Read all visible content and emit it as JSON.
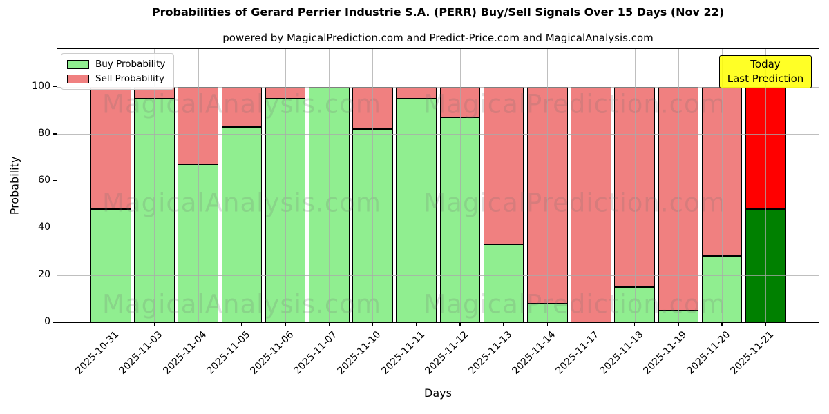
{
  "title": "Probabilities of Gerard Perrier Industrie S.A. (PERR) Buy/Sell Signals Over 15 Days (Nov 22)",
  "subtitle": "powered by MagicalPrediction.com and Predict-Price.com and MagicalAnalysis.com",
  "legend": {
    "buy_label": "Buy Probability",
    "sell_label": "Sell Probability"
  },
  "annotation": {
    "line1": "Today",
    "line2": "Last Prediction"
  },
  "axes": {
    "xlabel": "Days",
    "ylabel": "Probability",
    "yticks": [
      0,
      20,
      40,
      60,
      80,
      100
    ],
    "ylim": [
      0,
      116
    ],
    "dashed_line_y": 110,
    "grid": true
  },
  "colors": {
    "buy": "#90ee90",
    "sell": "#f08080",
    "today_buy": "#008000",
    "today_sell": "#ff0000",
    "annotation_bg": "#ffff00",
    "bar_edge": "#000000",
    "grid": "#aaaaaa",
    "watermark": "#6e6e6e"
  },
  "watermarks": {
    "left_text": "MagicalAnalysis.com",
    "right_text": "MagicalPrediction.com"
  },
  "chart_data": {
    "type": "bar",
    "stacked": true,
    "title": "Probabilities of Gerard Perrier Industrie S.A. (PERR) Buy/Sell Signals Over 15 Days (Nov 22)",
    "xlabel": "Days",
    "ylabel": "Probability",
    "ylim": [
      0,
      116
    ],
    "legend_position": "upper left",
    "grid": "on",
    "categories": [
      "2025-10-31",
      "2025-11-03",
      "2025-11-04",
      "2025-11-05",
      "2025-11-06",
      "2025-11-07",
      "2025-11-10",
      "2025-11-11",
      "2025-11-12",
      "2025-11-13",
      "2025-11-14",
      "2025-11-17",
      "2025-11-18",
      "2025-11-19",
      "2025-11-20",
      "2025-11-21"
    ],
    "series": [
      {
        "name": "Buy Probability",
        "values": [
          48,
          95,
          67,
          83,
          95,
          100,
          82,
          95,
          87,
          33,
          8,
          0,
          15,
          5,
          28,
          48
        ]
      },
      {
        "name": "Sell Probability",
        "values": [
          52,
          5,
          33,
          17,
          5,
          0,
          18,
          5,
          13,
          67,
          92,
          100,
          85,
          95,
          72,
          52
        ]
      }
    ],
    "today_index": 15,
    "dashed_reference_line": 110
  }
}
